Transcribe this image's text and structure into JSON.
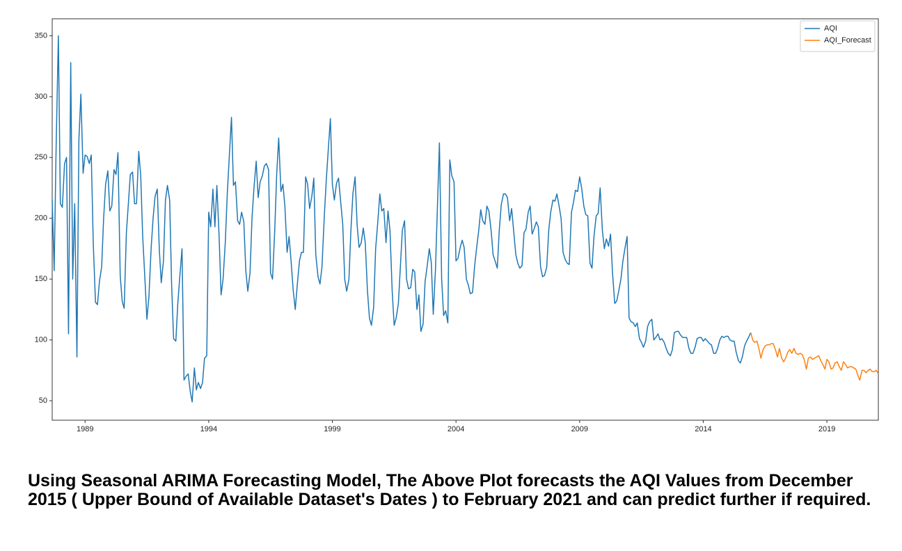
{
  "chart_data": {
    "type": "line",
    "caption": "Using Seasonal ARIMA Forecasting Model, The Above Plot forecasts the AQI Values from December 2015 ( Upper Bound of Available Dataset's Dates ) to February 2021 and can predict further if required.",
    "xlim": [
      1987.67,
      2021.08
    ],
    "xticks": [
      1989,
      1994,
      1999,
      2004,
      2009,
      2014,
      2019
    ],
    "ylim": [
      34,
      364
    ],
    "yticks": [
      50,
      100,
      150,
      200,
      250,
      300,
      350
    ],
    "legend": "upper right",
    "series": [
      {
        "name": "AQI",
        "color": "#1f77b4",
        "x": [
          1987.67,
          1987.75,
          1987.83,
          1987.92,
          1988,
          1988.08,
          1988.17,
          1988.25,
          1988.33,
          1988.42,
          1988.5,
          1988.58,
          1988.67,
          1988.75,
          1988.83,
          1988.92,
          1989,
          1989.08,
          1989.17,
          1989.25,
          1989.33,
          1989.42,
          1989.5,
          1989.58,
          1989.67,
          1989.75,
          1989.83,
          1989.92,
          1990,
          1990.08,
          1990.17,
          1990.25,
          1990.33,
          1990.42,
          1990.5,
          1990.58,
          1990.67,
          1990.75,
          1990.83,
          1990.92,
          1991,
          1991.08,
          1991.17,
          1991.25,
          1991.33,
          1991.42,
          1991.5,
          1991.58,
          1991.67,
          1991.75,
          1991.83,
          1991.92,
          1992,
          1992.08,
          1992.17,
          1992.25,
          1992.33,
          1992.42,
          1992.5,
          1992.58,
          1992.67,
          1992.75,
          1992.83,
          1992.92,
          1993,
          1993.08,
          1993.17,
          1993.25,
          1993.33,
          1993.42,
          1993.5,
          1993.58,
          1993.67,
          1993.75,
          1993.83,
          1993.92,
          1994,
          1994.08,
          1994.17,
          1994.25,
          1994.33,
          1994.42,
          1994.5,
          1994.58,
          1994.67,
          1994.75,
          1994.83,
          1994.92,
          1995,
          1995.08,
          1995.17,
          1995.25,
          1995.33,
          1995.42,
          1995.5,
          1995.58,
          1995.67,
          1995.75,
          1995.83,
          1995.92,
          1996,
          1996.08,
          1996.17,
          1996.25,
          1996.33,
          1996.42,
          1996.5,
          1996.58,
          1996.67,
          1996.75,
          1996.83,
          1996.92,
          1997,
          1997.08,
          1997.17,
          1997.25,
          1997.33,
          1997.42,
          1997.5,
          1997.58,
          1997.67,
          1997.75,
          1997.83,
          1997.92,
          1998,
          1998.08,
          1998.17,
          1998.25,
          1998.33,
          1998.42,
          1998.5,
          1998.58,
          1998.67,
          1998.75,
          1998.83,
          1998.92,
          1999,
          1999.08,
          1999.17,
          1999.25,
          1999.33,
          1999.42,
          1999.5,
          1999.58,
          1999.67,
          1999.75,
          1999.83,
          1999.92,
          2000,
          2000.08,
          2000.17,
          2000.25,
          2000.33,
          2000.42,
          2000.5,
          2000.58,
          2000.67,
          2000.75,
          2000.83,
          2000.92,
          2001,
          2001.08,
          2001.17,
          2001.25,
          2001.33,
          2001.42,
          2001.5,
          2001.58,
          2001.67,
          2001.75,
          2001.83,
          2001.92,
          2002,
          2002.08,
          2002.17,
          2002.25,
          2002.33,
          2002.42,
          2002.5,
          2002.58,
          2002.67,
          2002.75,
          2002.83,
          2002.92,
          2003,
          2003.08,
          2003.17,
          2003.25,
          2003.33,
          2003.42,
          2003.5,
          2003.58,
          2003.67,
          2003.75,
          2003.83,
          2003.92,
          2004,
          2004.08,
          2004.17,
          2004.25,
          2004.33,
          2004.42,
          2004.5,
          2004.58,
          2004.67,
          2004.75,
          2004.83,
          2004.92,
          2005,
          2005.08,
          2005.17,
          2005.25,
          2005.33,
          2005.42,
          2005.5,
          2005.58,
          2005.67,
          2005.75,
          2005.83,
          2005.92,
          2006,
          2006.08,
          2006.17,
          2006.25,
          2006.33,
          2006.42,
          2006.5,
          2006.58,
          2006.67,
          2006.75,
          2006.83,
          2006.92,
          2007,
          2007.08,
          2007.17,
          2007.25,
          2007.33,
          2007.42,
          2007.5,
          2007.58,
          2007.67,
          2007.75,
          2007.83,
          2007.92,
          2008,
          2008.08,
          2008.17,
          2008.25,
          2008.33,
          2008.42,
          2008.5,
          2008.58,
          2008.67,
          2008.75,
          2008.83,
          2008.92,
          2009,
          2009.08,
          2009.17,
          2009.25,
          2009.33,
          2009.42,
          2009.5,
          2009.58,
          2009.67,
          2009.75,
          2009.83,
          2009.92,
          2010,
          2010.08,
          2010.17,
          2010.25,
          2010.33,
          2010.42,
          2010.5,
          2010.58,
          2010.67,
          2010.75,
          2010.83,
          2010.92,
          2011,
          2011.08,
          2011.17,
          2011.25,
          2011.33,
          2011.42,
          2011.5,
          2011.58,
          2011.67,
          2011.75,
          2011.83,
          2011.92,
          2012,
          2012.08,
          2012.17,
          2012.25,
          2012.33,
          2012.42,
          2012.5,
          2012.58,
          2012.67,
          2012.75,
          2012.83,
          2012.92,
          2013,
          2013.08,
          2013.17,
          2013.25,
          2013.33,
          2013.42,
          2013.5,
          2013.58,
          2013.67,
          2013.75,
          2013.83,
          2013.92,
          2014,
          2014.08,
          2014.17,
          2014.25,
          2014.33,
          2014.42,
          2014.5,
          2014.58,
          2014.67,
          2014.75,
          2014.83,
          2014.92,
          2015,
          2015.08,
          2015.17,
          2015.25,
          2015.33,
          2015.42,
          2015.5,
          2015.58,
          2015.67,
          2015.75,
          2015.83,
          2015.92
        ],
        "values": [
          215,
          157,
          260,
          350,
          212,
          209,
          245,
          250,
          105,
          328,
          150,
          212,
          86,
          265,
          302,
          237,
          252,
          251,
          245,
          252,
          180,
          131,
          129,
          148,
          160,
          200,
          228,
          239,
          206,
          210,
          240,
          236,
          254,
          153,
          132,
          126,
          188,
          212,
          236,
          238,
          212,
          212,
          255,
          235,
          185,
          150,
          117,
          135,
          175,
          200,
          218,
          224,
          175,
          147,
          165,
          215,
          227,
          215,
          145,
          101,
          99,
          130,
          152,
          175,
          67,
          70,
          72,
          58,
          49,
          77,
          59,
          65,
          60,
          65,
          85,
          87,
          205,
          193,
          224,
          193,
          227,
          185,
          137,
          150,
          180,
          220,
          250,
          283,
          227,
          230,
          198,
          195,
          205,
          197,
          157,
          140,
          155,
          200,
          225,
          247,
          217,
          230,
          235,
          243,
          245,
          240,
          155,
          150,
          190,
          237,
          266,
          222,
          228,
          210,
          172,
          185,
          165,
          140,
          125,
          145,
          165,
          172,
          172,
          234,
          228,
          208,
          218,
          233,
          170,
          152,
          146,
          160,
          200,
          230,
          255,
          282,
          228,
          215,
          229,
          233,
          215,
          195,
          150,
          140,
          150,
          190,
          220,
          234,
          195,
          176,
          180,
          192,
          180,
          140,
          118,
          112,
          127,
          175,
          195,
          220,
          206,
          208,
          180,
          206,
          190,
          140,
          112,
          118,
          130,
          160,
          190,
          198,
          150,
          142,
          143,
          158,
          156,
          125,
          137,
          107,
          113,
          148,
          160,
          175,
          164,
          121,
          158,
          210,
          262,
          150,
          120,
          124,
          114,
          248,
          235,
          230,
          165,
          167,
          176,
          182,
          176,
          150,
          145,
          138,
          139,
          160,
          175,
          190,
          207,
          198,
          195,
          210,
          206,
          190,
          170,
          165,
          159,
          190,
          211,
          220,
          220,
          217,
          198,
          208,
          190,
          170,
          163,
          159,
          161,
          188,
          191,
          205,
          210,
          187,
          192,
          197,
          193,
          160,
          152,
          153,
          160,
          190,
          205,
          215,
          214,
          220,
          210,
          200,
          172,
          166,
          163,
          162,
          205,
          213,
          223,
          222,
          234,
          225,
          210,
          203,
          202,
          163,
          159,
          185,
          202,
          204,
          225,
          190,
          175,
          183,
          177,
          187,
          155,
          130,
          132,
          140,
          150,
          165,
          175,
          185,
          118,
          115,
          114,
          111,
          114,
          101,
          98,
          94,
          99,
          111,
          115,
          117,
          100,
          102,
          105,
          100,
          101,
          98,
          93,
          89,
          87,
          92,
          106,
          107,
          107,
          104,
          102,
          102,
          102,
          93,
          89,
          89,
          94,
          101,
          102,
          102,
          99,
          101,
          99,
          97,
          96,
          89,
          89,
          93,
          100,
          103,
          102,
          103,
          103,
          100,
          99,
          99,
          90,
          83,
          81,
          86,
          95,
          99,
          102,
          106
        ]
      },
      {
        "name": "AQI_Forecast",
        "color": "#ff7f0e",
        "x": [
          2015.92,
          2016,
          2016.08,
          2016.17,
          2016.25,
          2016.33,
          2016.42,
          2016.5,
          2016.58,
          2016.67,
          2016.75,
          2016.83,
          2016.92,
          2017,
          2017.08,
          2017.17,
          2017.25,
          2017.33,
          2017.42,
          2017.5,
          2017.58,
          2017.67,
          2017.75,
          2017.83,
          2017.92,
          2018,
          2018.08,
          2018.17,
          2018.25,
          2018.33,
          2018.42,
          2018.5,
          2018.58,
          2018.67,
          2018.75,
          2018.83,
          2018.92,
          2019,
          2019.08,
          2019.17,
          2019.25,
          2019.33,
          2019.42,
          2019.5,
          2019.58,
          2019.67,
          2019.75,
          2019.83,
          2019.92,
          2020,
          2020.08,
          2020.17,
          2020.25,
          2020.33,
          2020.42,
          2020.5,
          2020.58,
          2020.67,
          2020.75,
          2020.83,
          2020.92,
          2021,
          2021.08
        ],
        "values": [
          106,
          100,
          98,
          99,
          93,
          85,
          92,
          95,
          96,
          96,
          97,
          97,
          92,
          86,
          93,
          85,
          82,
          85,
          90,
          92,
          89,
          93,
          89,
          88,
          89,
          88,
          84,
          76,
          85,
          86,
          84,
          85,
          86,
          87,
          83,
          80,
          76,
          84,
          82,
          76,
          77,
          81,
          82,
          78,
          75,
          82,
          80,
          77,
          78,
          78,
          77,
          76,
          71,
          67,
          75,
          75,
          73,
          75,
          76,
          74,
          74,
          75,
          72
        ]
      }
    ]
  }
}
